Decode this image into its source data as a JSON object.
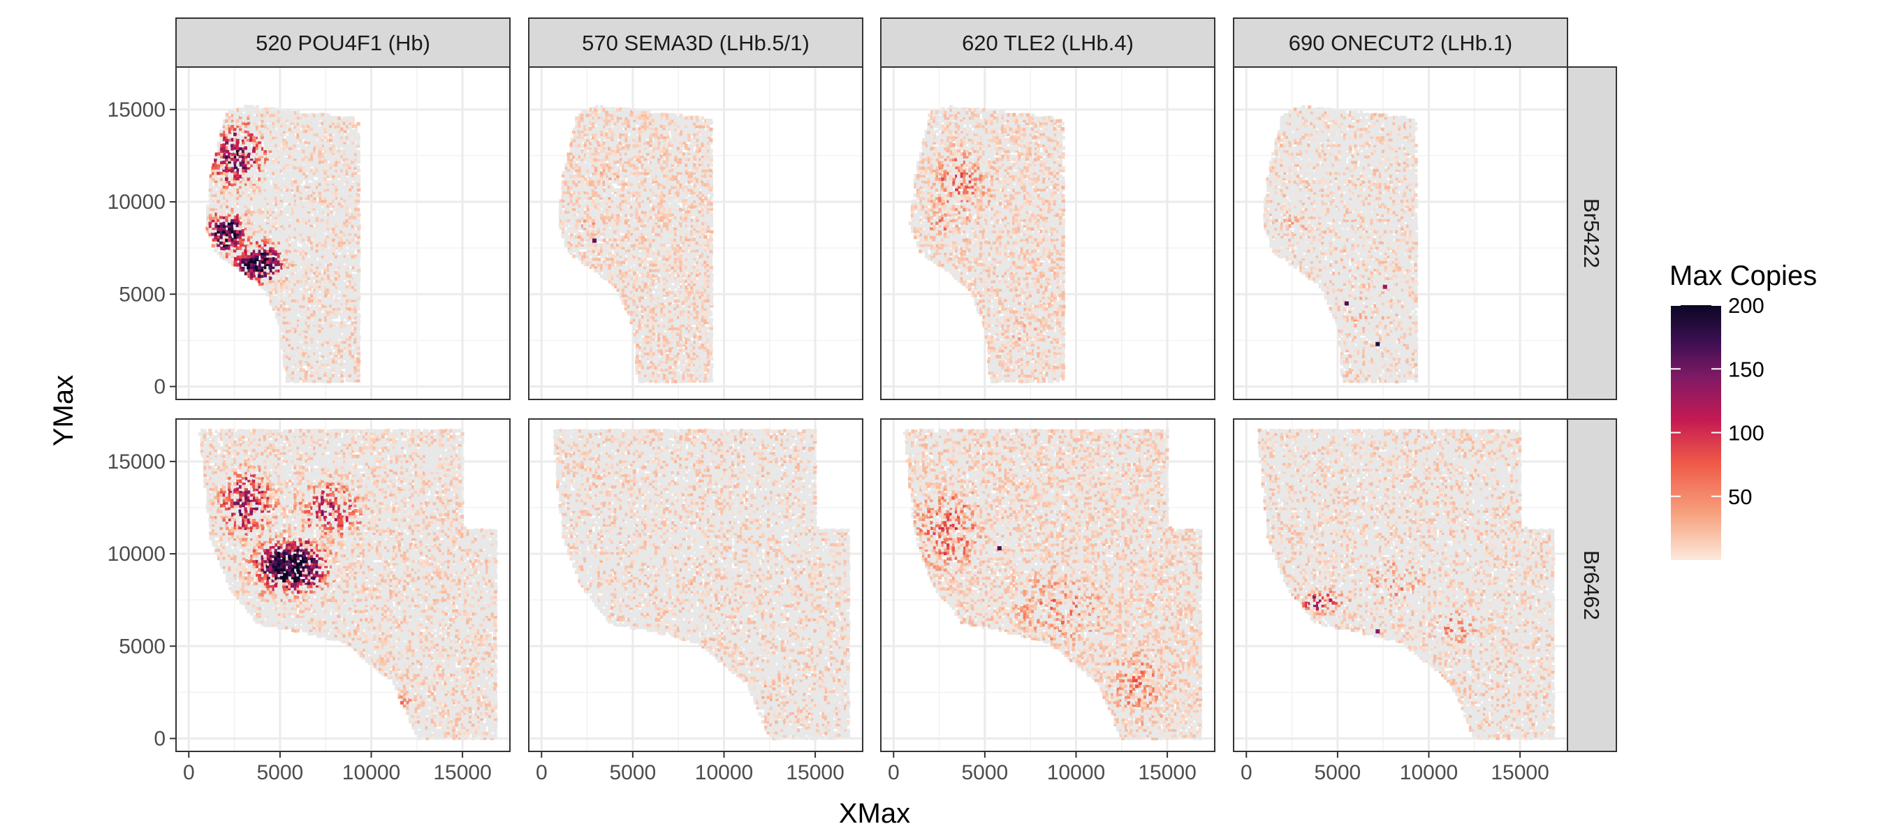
{
  "chart_data": {
    "type": "scatter",
    "facet_columns": [
      "520 POU4F1 (Hb)",
      "570 SEMA3D (LHb.5/1)",
      "620 TLE2 (LHb.4)",
      "690 ONECUT2 (LHb.1)"
    ],
    "facet_rows": [
      "Br5422",
      "Br6462"
    ],
    "xlabel": "XMax",
    "ylabel": "YMax",
    "xlim": [
      -700,
      17600
    ],
    "ylim": [
      -700,
      17300
    ],
    "x_ticks": [
      0,
      5000,
      10000,
      15000
    ],
    "y_ticks": [
      0,
      5000,
      10000,
      15000
    ],
    "x_tick_labels": [
      "0",
      "5000",
      "10000",
      "15000"
    ],
    "y_tick_labels": [
      "0",
      "5000",
      "10000",
      "15000"
    ],
    "grid": true,
    "legend": {
      "title": "Max Copies",
      "placement": "right",
      "min": 0,
      "max": 200,
      "breaks": [
        50,
        100,
        150,
        200
      ],
      "break_labels": [
        "50",
        "100",
        "150",
        "200"
      ],
      "colors": [
        "#fce9dc",
        "#f7a27f",
        "#ef5a47",
        "#c51a53",
        "#7e1a65",
        "#3b0f51",
        "#0b0724"
      ]
    },
    "tissue_color": "#e6e6e6",
    "tissue_sections": {
      "Br5422": [
        [
          900,
          8800
        ],
        [
          1200,
          11500
        ],
        [
          2000,
          14800
        ],
        [
          3200,
          15200
        ],
        [
          9300,
          14500
        ],
        [
          9400,
          300
        ],
        [
          5300,
          200
        ],
        [
          5000,
          3200
        ],
        [
          4200,
          5200
        ],
        [
          3000,
          6200
        ],
        [
          1500,
          7200
        ]
      ],
      "Br6462": [
        [
          600,
          16700
        ],
        [
          15000,
          16700
        ],
        [
          15000,
          11400
        ],
        [
          16900,
          11300
        ],
        [
          16900,
          0
        ],
        [
          12500,
          0
        ],
        [
          11200,
          3000
        ],
        [
          8500,
          5200
        ],
        [
          5500,
          5900
        ],
        [
          3800,
          6200
        ],
        [
          2200,
          8200
        ],
        [
          1200,
          10800
        ],
        [
          900,
          13500
        ]
      ]
    },
    "hotspots": {
      "Br5422": {
        "520 POU4F1 (Hb)": [
          [
            3800,
            6700,
            1300,
            1000,
            0.95
          ],
          [
            2100,
            8300,
            1000,
            1100,
            0.85
          ],
          [
            2600,
            12500,
            1600,
            1700,
            0.6
          ]
        ],
        "570 SEMA3D (LHb.5/1)": [
          [
            2300,
            8600,
            900,
            600,
            0.25
          ],
          [
            3500,
            11000,
            2000,
            2000,
            0.12
          ]
        ],
        "620 TLE2 (LHb.4)": [
          [
            3600,
            11000,
            1800,
            2200,
            0.28
          ],
          [
            2500,
            8800,
            1200,
            800,
            0.22
          ],
          [
            7000,
            3000,
            1500,
            2000,
            0.12
          ]
        ],
        "690 ONECUT2 (LHb.1)": [
          [
            2600,
            9000,
            1500,
            1200,
            0.14
          ],
          [
            6500,
            4000,
            1800,
            2500,
            0.12
          ]
        ]
      },
      "Br6462": {
        "520 POU4F1 (Hb)": [
          [
            5600,
            9300,
            1900,
            1400,
            0.92
          ],
          [
            3200,
            12700,
            1500,
            1800,
            0.55
          ],
          [
            7800,
            12400,
            1800,
            1500,
            0.45
          ],
          [
            11500,
            2000,
            900,
            500,
            0.25
          ]
        ],
        "570 SEMA3D (LHb.5/1)": [
          [
            8000,
            9000,
            4500,
            4500,
            0.1
          ],
          [
            12000,
            2500,
            1500,
            1000,
            0.14
          ]
        ],
        "620 TLE2 (LHb.4)": [
          [
            3000,
            11300,
            2200,
            2500,
            0.3
          ],
          [
            9000,
            7000,
            3000,
            2500,
            0.22
          ],
          [
            13500,
            3000,
            2200,
            2500,
            0.22
          ]
        ],
        "690 ONECUT2 (LHb.1)": [
          [
            4000,
            7400,
            1500,
            700,
            0.45
          ],
          [
            8000,
            8500,
            2000,
            1500,
            0.2
          ],
          [
            11500,
            6000,
            1500,
            1000,
            0.25
          ]
        ]
      }
    },
    "background_intensity": {
      "Br5422": {
        "520 POU4F1 (Hb)": 0.06,
        "570 SEMA3D (LHb.5/1)": 0.1,
        "620 TLE2 (LHb.4)": 0.1,
        "690 ONECUT2 (LHb.1)": 0.06
      },
      "Br6462": {
        "520 POU4F1 (Hb)": 0.08,
        "570 SEMA3D (LHb.5/1)": 0.07,
        "620 TLE2 (LHb.4)": 0.1,
        "690 ONECUT2 (LHb.1)": 0.07
      }
    },
    "rare_high_points": {
      "Br5422": {
        "690 ONECUT2 (LHb.1)": [
          [
            5500,
            4500,
            160
          ],
          [
            7200,
            2300,
            180
          ],
          [
            7600,
            5400,
            120
          ]
        ],
        "570 SEMA3D (LHb.5/1)": [
          [
            2900,
            7900,
            150
          ]
        ]
      },
      "Br6462": {
        "620 TLE2 (LHb.4)": [
          [
            5800,
            10300,
            160
          ]
        ],
        "690 ONECUT2 (LHb.1)": [
          [
            7200,
            5800,
            130
          ]
        ]
      }
    }
  }
}
